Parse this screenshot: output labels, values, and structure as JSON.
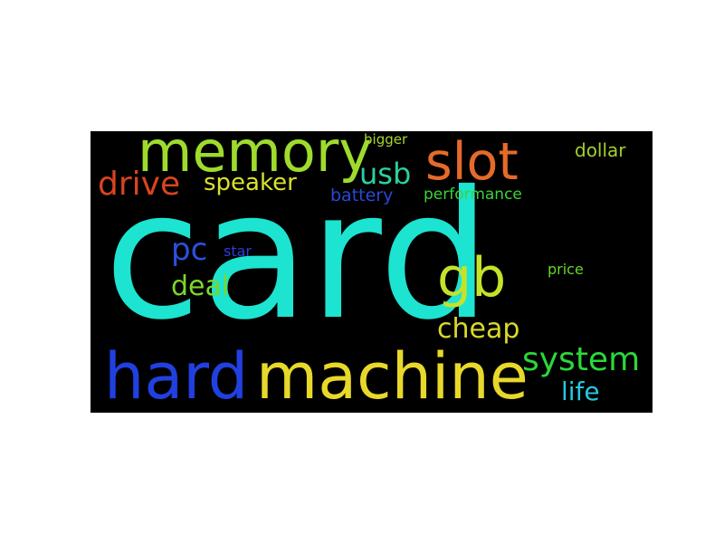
{
  "background": "#000000",
  "words": [
    {
      "id": "card",
      "text": "card",
      "color": "#1de3d1"
    },
    {
      "id": "memory",
      "text": "memory",
      "color": "#9fdb2c"
    },
    {
      "id": "slot",
      "text": "slot",
      "color": "#e56a2a"
    },
    {
      "id": "bigger",
      "text": "bigger",
      "color": "#a8d532"
    },
    {
      "id": "dollar",
      "text": "dollar",
      "color": "#a3d12a"
    },
    {
      "id": "drive",
      "text": "drive",
      "color": "#d8441f"
    },
    {
      "id": "speaker",
      "text": "speaker",
      "color": "#d9e22a"
    },
    {
      "id": "usb",
      "text": "usb",
      "color": "#2ad0a0"
    },
    {
      "id": "battery",
      "text": "battery",
      "color": "#2a48d8"
    },
    {
      "id": "performance",
      "text": "performance",
      "color": "#3cd33a"
    },
    {
      "id": "pc",
      "text": "pc",
      "color": "#2a50e0"
    },
    {
      "id": "star",
      "text": "star",
      "color": "#2a3ed8"
    },
    {
      "id": "gb",
      "text": "gb",
      "color": "#c5e22a"
    },
    {
      "id": "price",
      "text": "price",
      "color": "#6ad32a"
    },
    {
      "id": "deal",
      "text": "deal",
      "color": "#7ad82a"
    },
    {
      "id": "cheap",
      "text": "cheap",
      "color": "#d9d82a"
    },
    {
      "id": "hard",
      "text": "hard",
      "color": "#2040e0"
    },
    {
      "id": "machine",
      "text": "machine",
      "color": "#e8d82a"
    },
    {
      "id": "system",
      "text": "system",
      "color": "#2ad83a"
    },
    {
      "id": "life",
      "text": "life",
      "color": "#26c8e0"
    }
  ]
}
